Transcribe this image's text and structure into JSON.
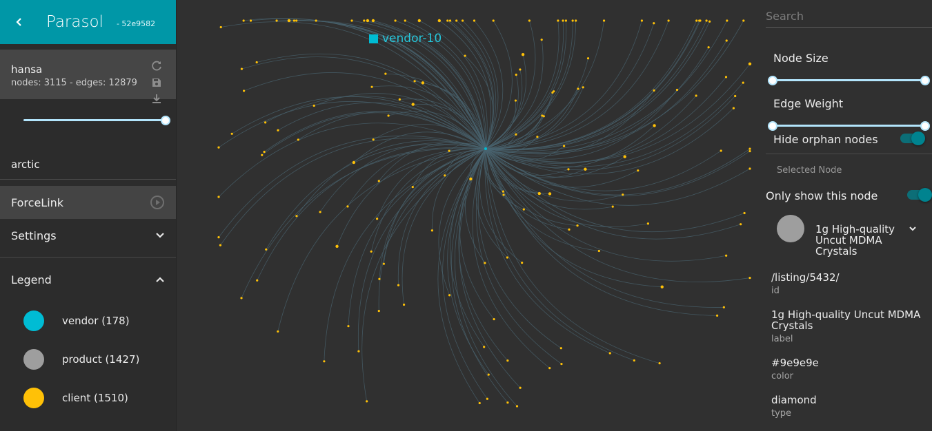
{
  "app": {
    "title": "Parasol",
    "hash": "- 52e9582",
    "back_icon": "chevron-left-icon"
  },
  "graph": {
    "name": "hansa",
    "stats": "nodes: 3115 - edges: 12879",
    "icons": [
      "refresh-icon",
      "save-icon",
      "download-icon"
    ],
    "slider_value": 1.0
  },
  "query": "arctic",
  "layout": {
    "label": "ForceLink",
    "icon": "play-circle-icon"
  },
  "settings": {
    "label": "Settings",
    "icon": "chevron-down-icon"
  },
  "legend": {
    "label": "Legend",
    "icon": "chevron-up-icon",
    "items": [
      {
        "label": "vendor (178)",
        "color": "#00bcd4"
      },
      {
        "label": "product (1427)",
        "color": "#9e9e9e"
      },
      {
        "label": "client (1510)",
        "color": "#ffc107"
      }
    ]
  },
  "canvas": {
    "hover_label": "vendor-10",
    "hover_color": "#00bcd4",
    "node_color": "#ffc107",
    "edge_color": "#4a6470"
  },
  "panel": {
    "search_placeholder": "Search",
    "node_size_label": "Node Size",
    "edge_weight_label": "Edge Weight",
    "hide_orphan_label": "Hide orphan nodes",
    "hide_orphan_on": true,
    "selected_node_label": "Selected Node",
    "only_show_label": "Only show this node",
    "only_show_on": true,
    "node_size_range": [
      0,
      1
    ],
    "edge_weight_range": [
      0,
      1
    ]
  },
  "selected_node": {
    "title": "1g High-quality Uncut MDMA Crystals",
    "color": "#9e9e9e",
    "properties": [
      {
        "value": "/listing/5432/",
        "key": "id"
      },
      {
        "value": "1g High-quality Uncut MDMA Crystals",
        "key": "label"
      },
      {
        "value": "#9e9e9e",
        "key": "color"
      },
      {
        "value": "diamond",
        "key": "type"
      }
    ]
  }
}
